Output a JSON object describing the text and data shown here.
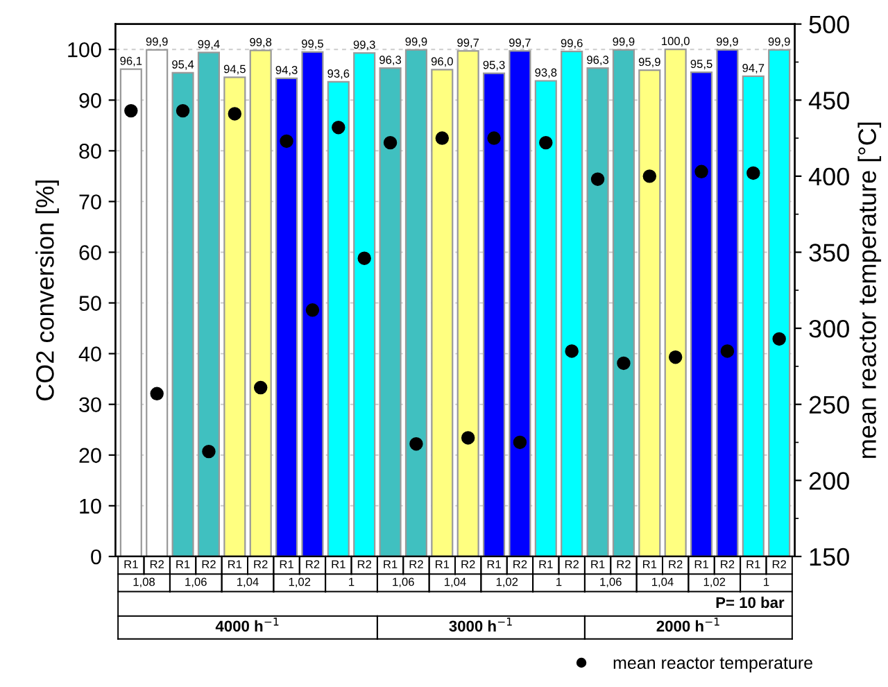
{
  "chart_data": {
    "type": "bar",
    "ylabel": "CO2 conversion [%]",
    "y2label": "mean reactor temperature [°C]",
    "categories": [
      "R1",
      "R2",
      "R1",
      "R2",
      "R1",
      "R2",
      "R1",
      "R2",
      "R1",
      "R2",
      "R1",
      "R2",
      "R1",
      "R2",
      "R1",
      "R2",
      "R1",
      "R2",
      "R1",
      "R2",
      "R1",
      "R2",
      "R1",
      "R2",
      "R1",
      "R2"
    ],
    "series": [
      {
        "colors": [
          "#ffffff",
          "#ffffff",
          "#40c0c0",
          "#40c0c0",
          "#ffff80",
          "#ffff80",
          "#0000ff",
          "#0000ff",
          "#00ffff",
          "#00ffff",
          "#40c0c0",
          "#40c0c0",
          "#ffff80",
          "#ffff80",
          "#0000ff",
          "#0000ff",
          "#00ffff",
          "#00ffff",
          "#40c0c0",
          "#40c0c0",
          "#ffff80",
          "#ffff80",
          "#0000ff",
          "#0000ff",
          "#00ffff",
          "#00ffff"
        ],
        "values": [
          96.1,
          99.9,
          95.4,
          99.4,
          94.5,
          99.8,
          94.3,
          99.5,
          93.6,
          99.3,
          96.3,
          99.9,
          96.0,
          99.7,
          95.3,
          99.7,
          93.8,
          99.6,
          96.3,
          99.9,
          95.9,
          100.0,
          95.5,
          99.9,
          94.7,
          99.9
        ],
        "value_labels": [
          "96,1",
          "99,9",
          "95,4",
          "99,4",
          "94,5",
          "99,8",
          "94,3",
          "99,5",
          "93,6",
          "99,3",
          "96,3",
          "99,9",
          "96,0",
          "99,7",
          "95,3",
          "99,7",
          "93,8",
          "99,6",
          "96,3",
          "99,9",
          "95,9",
          "100,0",
          "95,5",
          "99,9",
          "94,7",
          "99,9"
        ]
      },
      {
        "type": "scatter",
        "name": "mean reactor temperature",
        "color": "#000000",
        "axis": "y2",
        "marker": "circle",
        "values": [
          443,
          257,
          443,
          219,
          441,
          261,
          423,
          312,
          432,
          346,
          422,
          224,
          425,
          228,
          425,
          225,
          422,
          285,
          398,
          277,
          400,
          281,
          403,
          285,
          402,
          293
        ]
      }
    ],
    "ylim": [
      0,
      105
    ],
    "yticks": [
      0,
      10,
      20,
      30,
      40,
      50,
      60,
      70,
      80,
      90,
      100
    ],
    "y2lim": [
      150,
      500
    ],
    "y2ticks": [
      150,
      200,
      250,
      300,
      350,
      400,
      450,
      500
    ],
    "grid": "y",
    "legend": "bottom right",
    "annotations": [
      "1,08",
      "1,06",
      "1,04",
      "1,02",
      "1",
      "1,06",
      "1,04",
      "1,02",
      "1",
      "1,06",
      "1,04",
      "1,02",
      "1",
      "P= 10 bar",
      "4000 h$^{−1}$",
      "3000 h$^{−1}$",
      "2000 h$^{−1}$"
    ]
  }
}
